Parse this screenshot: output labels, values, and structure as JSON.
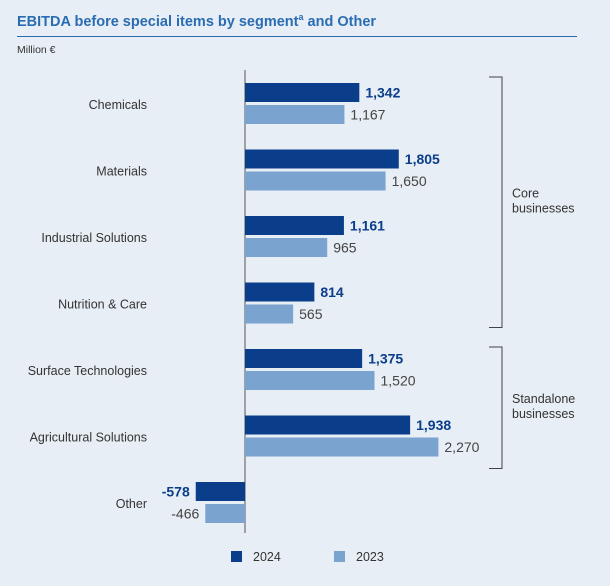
{
  "header": {
    "title": "EBITDA before special items by segment",
    "title_sup": "a",
    "title_tail": " and Other",
    "unit": "Million €"
  },
  "chart_data": {
    "type": "bar",
    "orientation": "horizontal",
    "categories": [
      "Chemicals",
      "Materials",
      "Industrial Solutions",
      "Nutrition & Care",
      "Surface Technologies",
      "Agricultural Solutions",
      "Other"
    ],
    "series": [
      {
        "name": "2024",
        "color": "#0a3e8a",
        "values": [
          1342,
          1805,
          1161,
          814,
          1375,
          1938,
          -578
        ],
        "labels": [
          "1,342",
          "1,805",
          "1,161",
          "814",
          "1,375",
          "1,938",
          "-578"
        ]
      },
      {
        "name": "2023",
        "color": "#7aa3cf",
        "values": [
          1167,
          1650,
          965,
          565,
          1520,
          2270,
          -466
        ],
        "labels": [
          "1,167",
          "1,650",
          "965",
          "565",
          "1,520",
          "2,270",
          "-466"
        ]
      }
    ],
    "groups": [
      {
        "label_lines": [
          "Core",
          "businesses"
        ],
        "from": 0,
        "to": 3
      },
      {
        "label_lines": [
          "Standalone",
          "businesses"
        ],
        "from": 4,
        "to": 5
      }
    ],
    "legend": [
      "2024",
      "2023"
    ],
    "xlim": [
      -700,
      2600
    ]
  }
}
